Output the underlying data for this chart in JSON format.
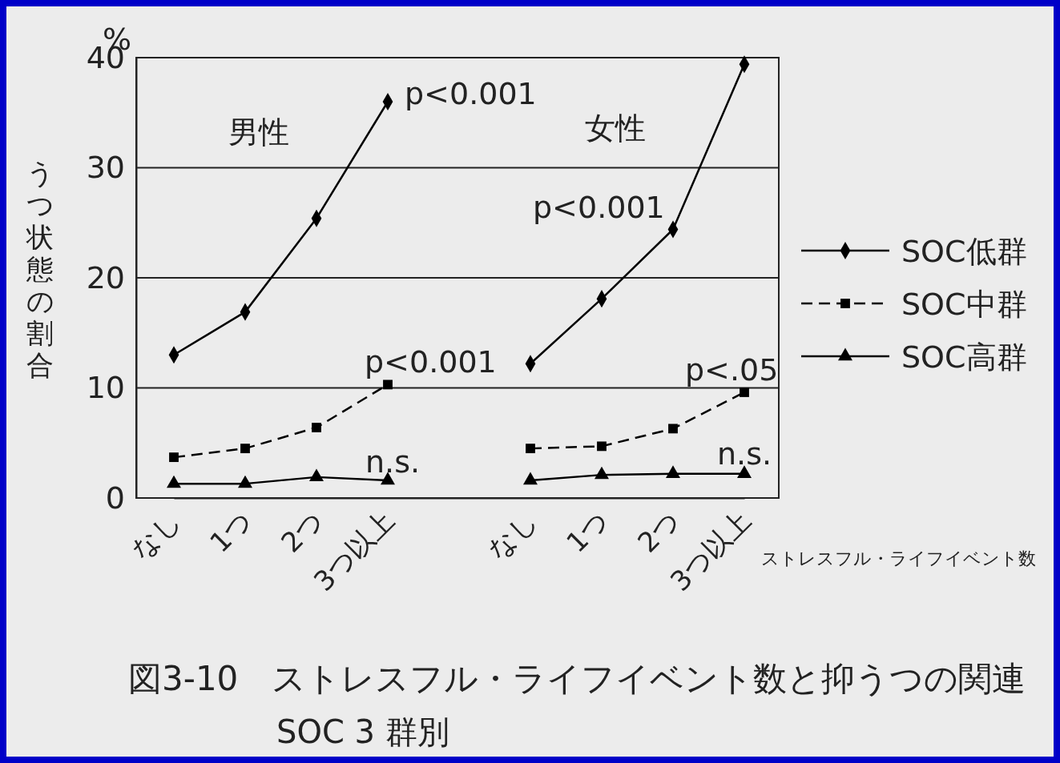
{
  "chart_data": {
    "type": "line",
    "title": "図3-10　ストレスフル・ライフイベント数と抑うつの関連",
    "subtitle": "SOC 3 群別",
    "xlabel": "ストレスフル・ライフイベント数",
    "ylabel": "うつ状態の割合",
    "categories": [
      "なし",
      "1つ",
      "2つ",
      "3つ以上",
      null,
      "なし",
      "1つ",
      "2つ",
      "3つ以上"
    ],
    "series": [
      {
        "name": "SOC低群",
        "color": "#000000",
        "marker": "diamond",
        "line_style": "solid",
        "values": [
          13,
          16.9,
          25.4,
          36,
          null,
          12.2,
          18.1,
          24.4,
          39.4
        ]
      },
      {
        "name": "SOC中群",
        "color": "#000000",
        "marker": "square",
        "line_style": "dashed",
        "values": [
          3.7,
          4.5,
          6.4,
          10.3,
          null,
          4.5,
          4.7,
          6.3,
          9.6
        ]
      },
      {
        "name": "SOC高群",
        "color": "#000000",
        "marker": "triangle",
        "line_style": "solid",
        "values": [
          1.3,
          1.3,
          1.9,
          1.6,
          null,
          1.6,
          2.1,
          2.2,
          2.2
        ]
      }
    ],
    "ylim": [
      0,
      40
    ],
    "yticks": [
      0,
      10,
      20,
      30,
      40
    ],
    "grid": "y",
    "legend": "right",
    "annotations": [
      "%",
      "男性",
      "女性",
      "p<0.001",
      "p<0.001",
      "p<0.001",
      "p<.05",
      "n.s.",
      "n.s."
    ]
  }
}
